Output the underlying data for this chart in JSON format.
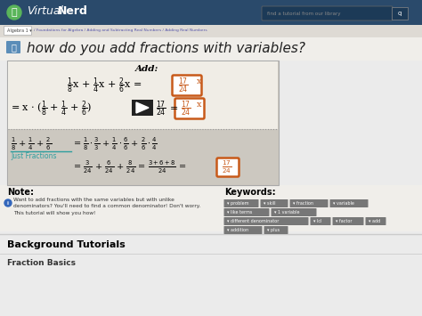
{
  "bg_color": "#ebebeb",
  "header_color": "#2a4a6b",
  "header_text_virtual": "Virtual",
  "header_text_nerd": "Nerd",
  "breadcrumb_text": "Algebra 1  ▾  / Foundations for Algebra / Adding and Subtracting Real Numbers / Adding Real Numbers",
  "title": "how do you add fractions with variables?",
  "title_color": "#222222",
  "video_bg": "#ccc8c0",
  "video_inner_bg": "#f0ede6",
  "note_title": "Note:",
  "note_text_line1": "Want to add fractions with the same variables but with unlike",
  "note_text_line2": "denominators? You'll need to find a common denominator! Don't worry.",
  "note_text_line3": "This tutorial will show you how!",
  "keywords_title": "Keywords:",
  "keywords_row1": [
    "problem",
    "skill",
    "fraction",
    "variable"
  ],
  "keywords_row2": [
    "like terms",
    "1 variable"
  ],
  "keywords_row3": [
    "different denominator",
    "lcl",
    "factor",
    "add"
  ],
  "keywords_row4": [
    "addition",
    "plus"
  ],
  "bg_tutorials": "Background Tutorials",
  "subtitle_below": "Fraction Basics",
  "search_placeholder": "find a tutorial from our library",
  "icon_green": "#5ab55a",
  "print_icon_color": "#5b8db8",
  "orange_box": "#c85a1a",
  "teal_text": "#2d9e9e",
  "keyword_bg": "#777777",
  "keyword_color": "#ffffff",
  "divider_color": "#cccccc",
  "breadcrumb_bg": "#dedad4",
  "content_bg": "#f0eeea"
}
